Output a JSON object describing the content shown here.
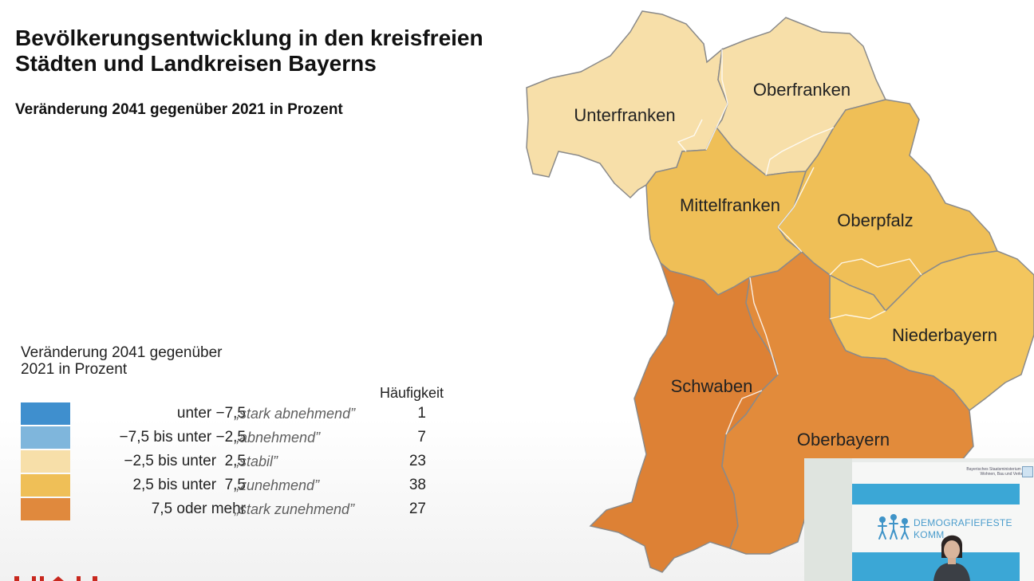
{
  "title": "Bevölkerungsentwicklung in den kreisfreien Städten und Landkreisen Bayerns",
  "subtitle": "Veränderung 2041 gegenüber 2021 in Prozent",
  "legend": {
    "title": "Veränderung 2041 gegenüber 2021 in Prozent",
    "frequency_header": "Häufigkeit",
    "items": [
      {
        "range": "unter −7,5",
        "description": "„stark abnehmend”",
        "count": "1",
        "color": "#3f8fce"
      },
      {
        "range": "−7,5 bis unter −2,5",
        "description": "„abnehmend”",
        "count": "7",
        "color": "#7fb6dc"
      },
      {
        "range": "−2,5 bis unter  2,5",
        "description": "„stabil”",
        "count": "23",
        "color": "#f7dfa9"
      },
      {
        "range": "2,5 bis unter  7,5",
        "description": "„zunehmend”",
        "count": "38",
        "color": "#efbf57"
      },
      {
        "range": "7,5 oder mehr",
        "description": "„stark zunehmend”",
        "count": "27",
        "color": "#e0893d"
      }
    ]
  },
  "map": {
    "regions": [
      {
        "name": "Unterfranken",
        "category": "stabil",
        "color": "#f7dfa9"
      },
      {
        "name": "Oberfranken",
        "category": "stabil",
        "color": "#f7dfa9"
      },
      {
        "name": "Mittelfranken",
        "category": "zunehmend",
        "color": "#efbf57"
      },
      {
        "name": "Oberpfalz",
        "category": "zunehmend",
        "color": "#efbf57"
      },
      {
        "name": "Niederbayern",
        "category": "zunehmend",
        "color": "#f3c65e"
      },
      {
        "name": "Schwaben",
        "category": "stark zunehmend",
        "color": "#dd8135"
      },
      {
        "name": "Oberbayern",
        "category": "stark zunehmend",
        "color": "#e28b3b"
      }
    ]
  },
  "video_overlay": {
    "logo_text": "DEMOGRAFIEFESTE\nKOMM",
    "brand_text": "Bayerisches Staatsministerium für Wohnen, Bau und Verkehr",
    "icons": [
      "people-logo-icon",
      "speaker-person"
    ]
  }
}
